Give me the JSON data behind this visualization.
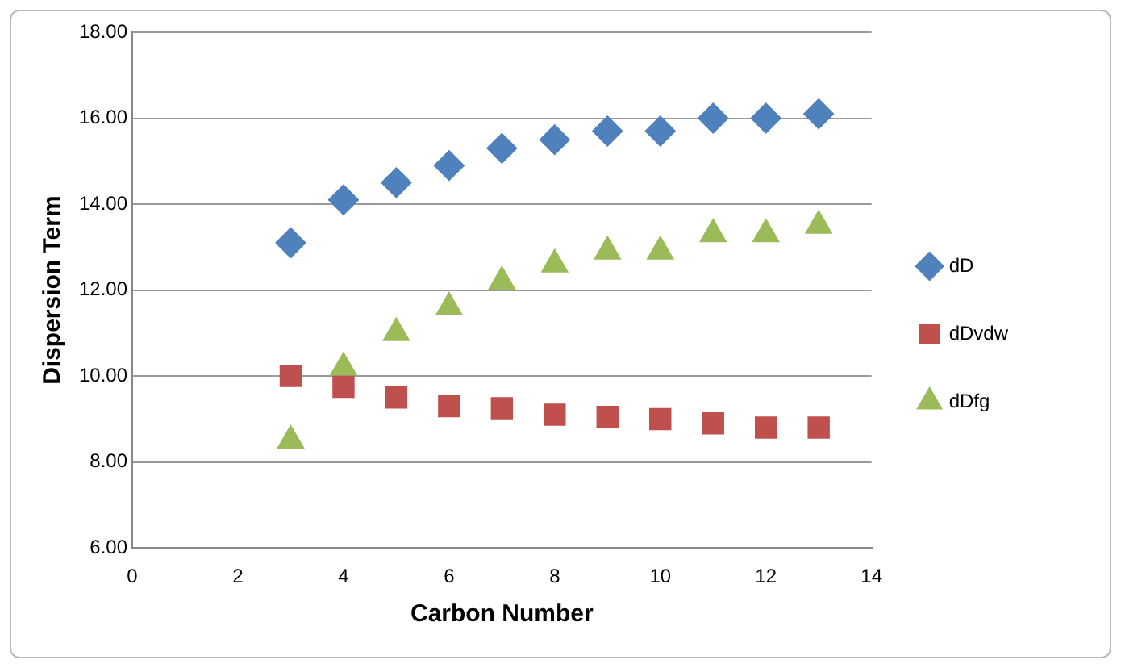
{
  "chart_data": {
    "type": "scatter",
    "xlabel": "Carbon Number",
    "ylabel": "Dispersion Term",
    "x": [
      3,
      4,
      5,
      6,
      7,
      8,
      9,
      10,
      11,
      12,
      13
    ],
    "series": [
      {
        "name": "dD",
        "color": "#4f81bd",
        "marker": "diamond",
        "values": [
          13.1,
          14.1,
          14.5,
          14.9,
          15.3,
          15.5,
          15.7,
          15.7,
          16.0,
          16.0,
          16.1
        ]
      },
      {
        "name": "dDvdw",
        "color": "#c0504d",
        "marker": "square",
        "values": [
          10.0,
          9.75,
          9.5,
          9.3,
          9.25,
          9.1,
          9.05,
          9.0,
          8.9,
          8.8,
          8.8
        ]
      },
      {
        "name": "dDfg",
        "color": "#9bbb59",
        "marker": "triangle",
        "values": [
          8.5,
          10.2,
          11.0,
          11.6,
          12.2,
          12.6,
          12.9,
          12.9,
          13.3,
          13.3,
          13.5
        ]
      }
    ],
    "xlim": [
      0,
      14
    ],
    "xticks": [
      0,
      2,
      4,
      6,
      8,
      10,
      12,
      14
    ],
    "ylim": [
      6,
      18
    ],
    "yticks": [
      {
        "value": 6,
        "label": "6.00"
      },
      {
        "value": 8,
        "label": "8.00"
      },
      {
        "value": 10,
        "label": "10.00"
      },
      {
        "value": 12,
        "label": "12.00"
      },
      {
        "value": 14,
        "label": "14.00"
      },
      {
        "value": 16,
        "label": "16.00"
      },
      {
        "value": 18,
        "label": "18.00"
      }
    ],
    "grid": "y",
    "legend": "right"
  }
}
